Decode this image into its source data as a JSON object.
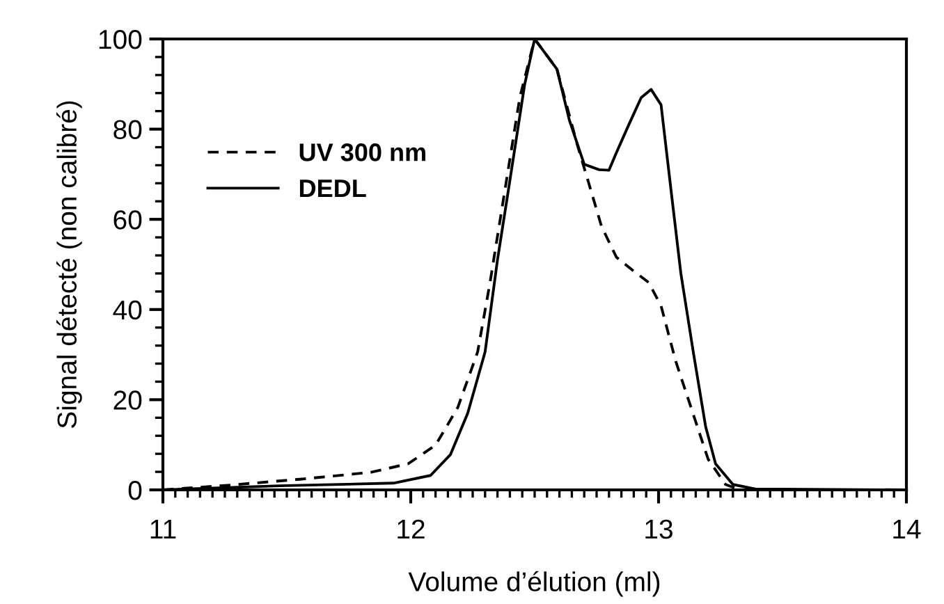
{
  "chart_data": {
    "type": "line",
    "xlabel": "Volume d’élution (ml)",
    "ylabel": "Signal détecté (non calibré)",
    "xlim": [
      11,
      14
    ],
    "xticks": [
      11,
      12,
      13,
      14
    ],
    "ylim": [
      0,
      100
    ],
    "yticks": [
      0,
      20,
      40,
      60,
      80,
      100
    ],
    "grid": false,
    "legend": "top left",
    "marker": "none",
    "series": [
      {
        "name": "UV 300 nm",
        "color": "#000000",
        "line_style": "dashed",
        "x": [
          11,
          11.28,
          11.56,
          11.84,
          11.99,
          12.1,
          12.19,
          12.27,
          12.32,
          12.38,
          12.44,
          12.5,
          12.59,
          12.67,
          12.72,
          12.77,
          12.83,
          12.9,
          12.96,
          13.01,
          13.07,
          13.15,
          13.2,
          13.27,
          13.33
        ],
        "values": [
          0,
          1.1,
          2.4,
          3.9,
          5.8,
          9.9,
          18.3,
          30.6,
          46,
          66.5,
          87,
          100,
          93.3,
          76.9,
          67.7,
          58.4,
          51.6,
          48.5,
          46,
          40.8,
          28.4,
          15.1,
          6.8,
          1.2,
          0
        ]
      },
      {
        "name": "DEDL",
        "color": "#000000",
        "line_style": "solid",
        "x": [
          11,
          11.47,
          11.93,
          12.08,
          12.16,
          12.23,
          12.3,
          12.35,
          12.4,
          12.46,
          12.5,
          12.59,
          12.64,
          12.7,
          12.76,
          12.8,
          12.83,
          12.88,
          12.93,
          12.97,
          13.01,
          13.05,
          13.09,
          13.14,
          13.19,
          13.23,
          13.3,
          13.39,
          14
        ],
        "values": [
          0,
          0.9,
          1.5,
          3.2,
          7.8,
          17,
          30.6,
          51,
          68.6,
          90,
          100,
          93.3,
          82,
          72.2,
          71,
          70.9,
          74.8,
          81,
          87,
          88.8,
          85.4,
          66.6,
          48,
          30.6,
          14,
          5.8,
          1.2,
          0.2,
          0
        ]
      }
    ]
  }
}
